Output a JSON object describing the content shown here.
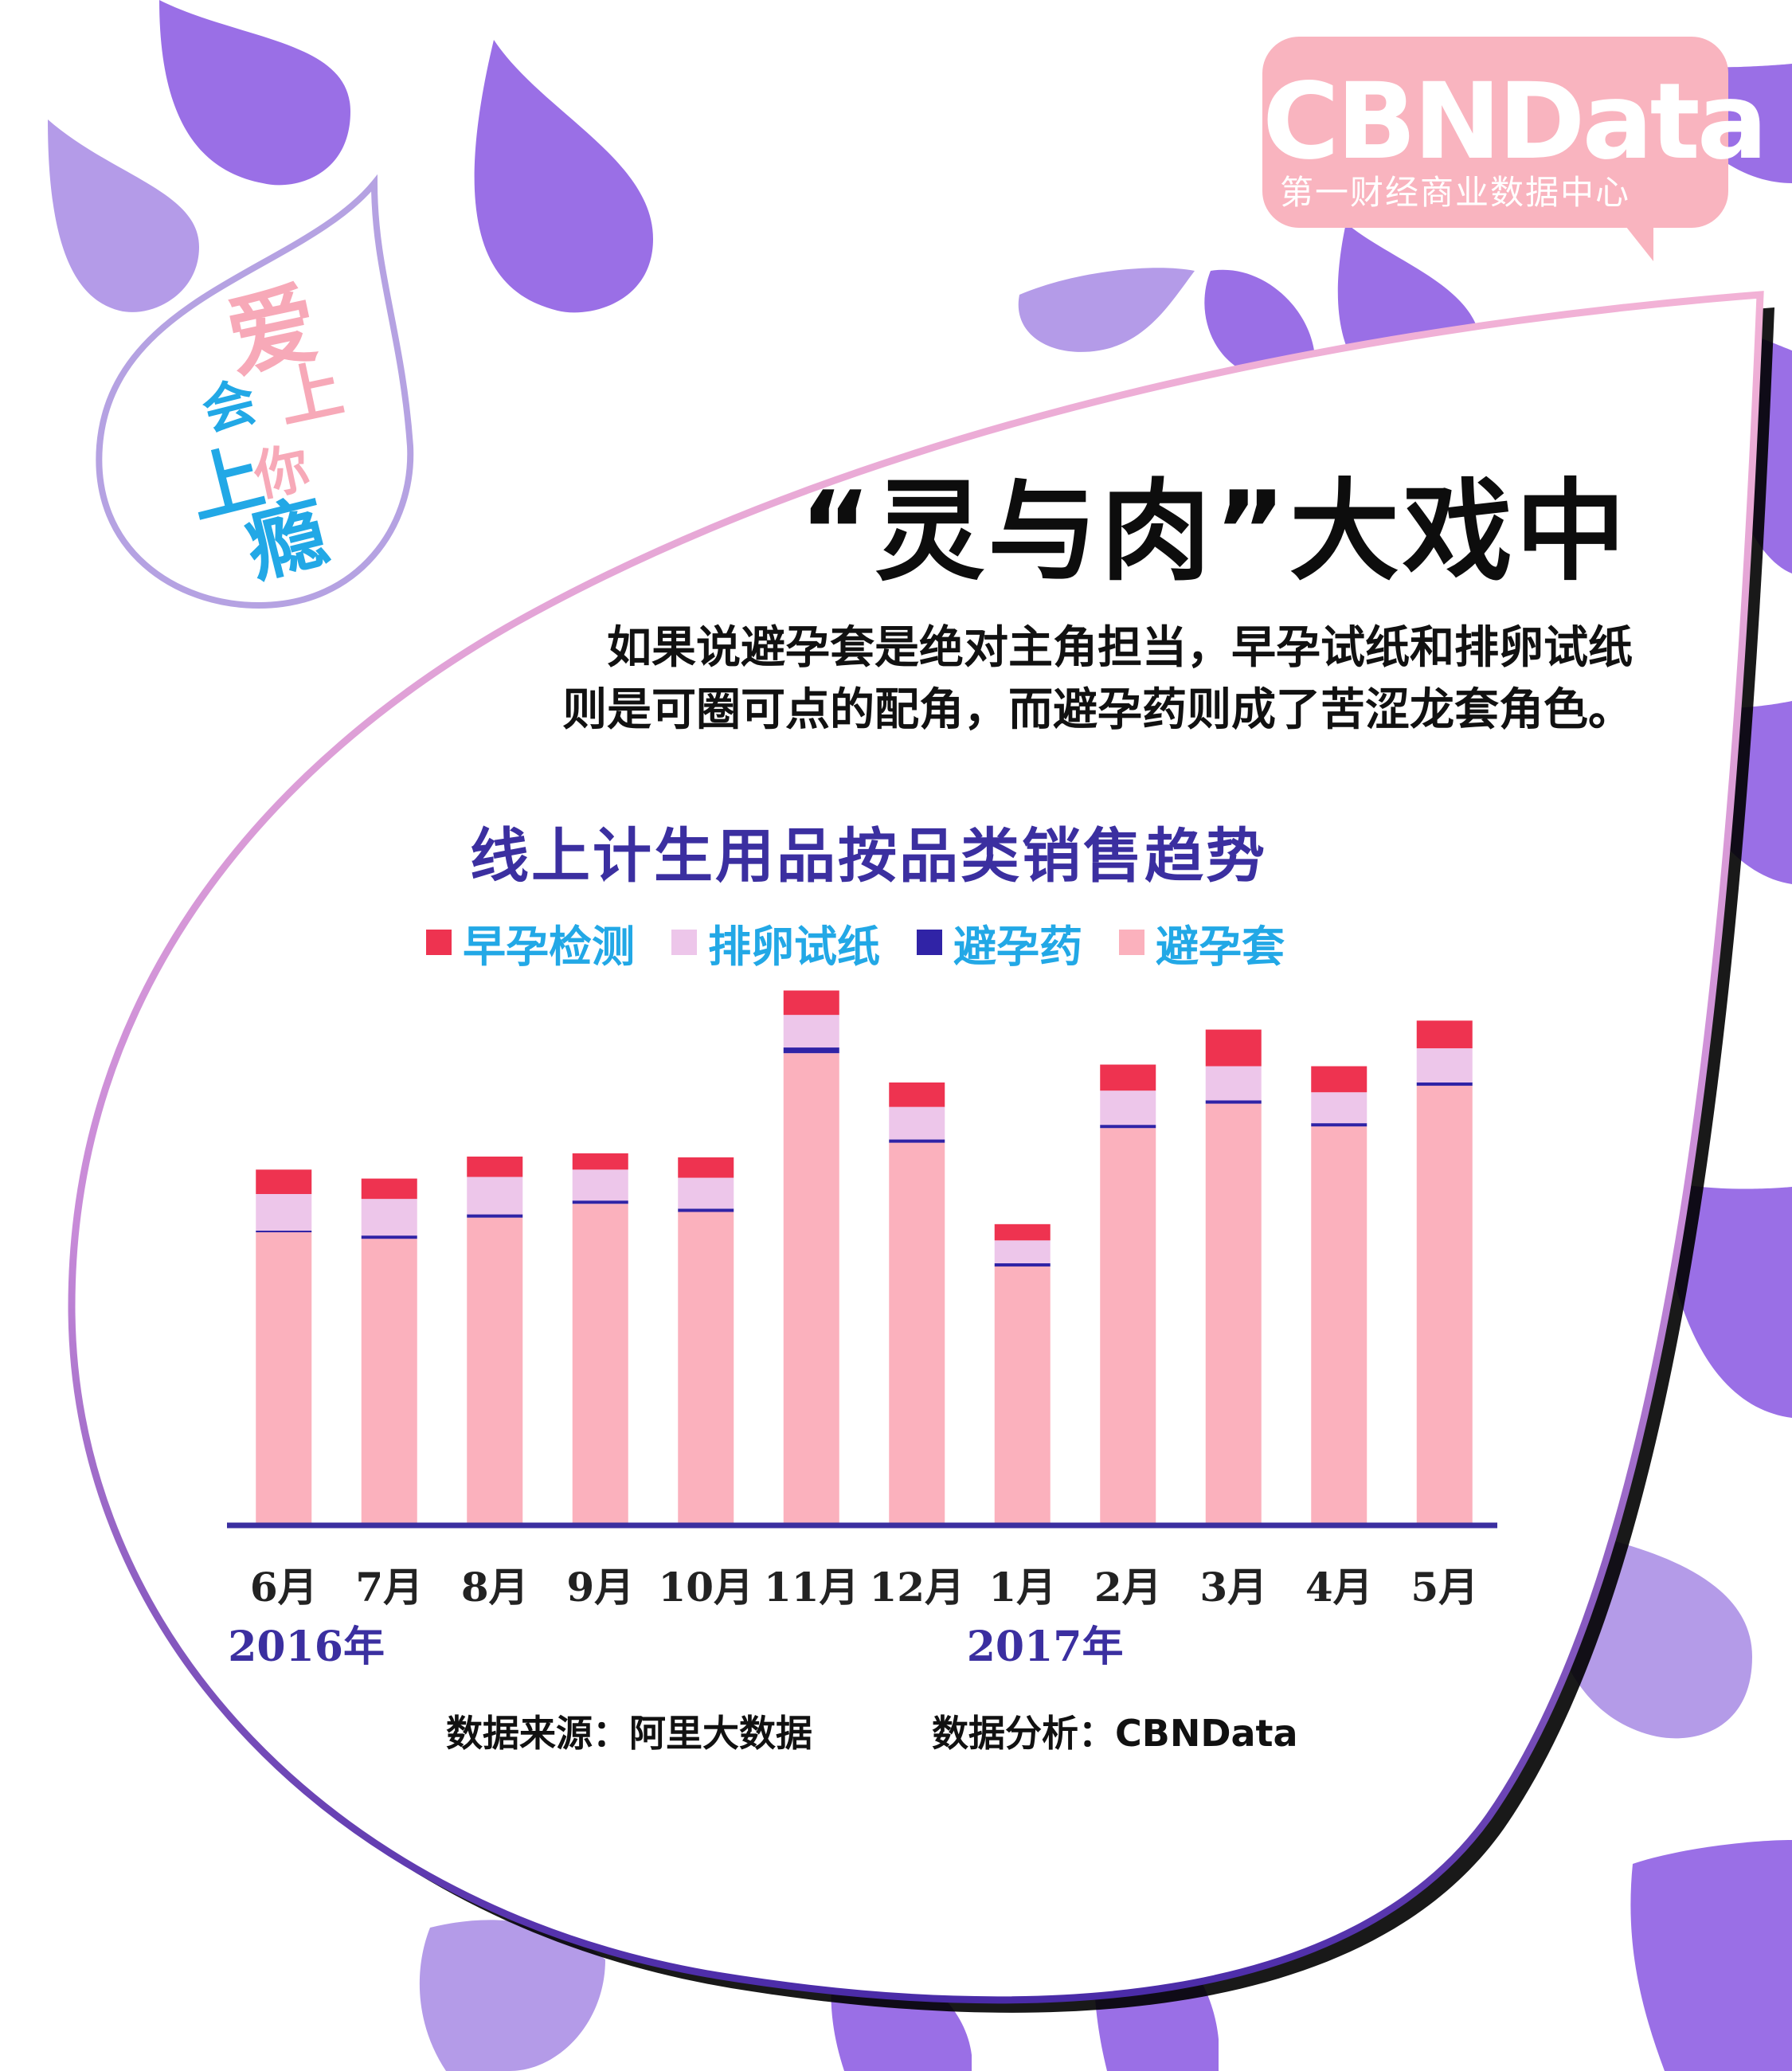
{
  "brand": {
    "logo_text": "CBNData",
    "logo_subtitle": "第一财经商业数据中心"
  },
  "badge": {
    "line1": [
      "爱",
      "上",
      "你"
    ],
    "line2": [
      "会",
      "上",
      "瘾"
    ]
  },
  "headline": "“灵与肉”大戏中",
  "intro": {
    "line1": "如果说避孕套是绝对主角担当，早孕试纸和排卵试纸",
    "line2": "则是可圈可点的配角，而避孕药则成了苦涩龙套角色。"
  },
  "colors": {
    "accent": "#3b2fa0",
    "drop_purple": "#9a6fe6",
    "drop_light": "#b49be8",
    "pink": "#f9b4bf"
  },
  "chart_data": {
    "type": "bar",
    "stacked": true,
    "title": "线上计生用品按品类销售趋势",
    "categories": [
      "6月",
      "7月",
      "8月",
      "9月",
      "10月",
      "11月",
      "12月",
      "1月",
      "2月",
      "3月",
      "4月",
      "5月"
    ],
    "year_labels": [
      {
        "text": "2016年",
        "start_index": 0
      },
      {
        "text": "2017年",
        "start_index": 7
      }
    ],
    "legend_placement": "top",
    "legend_order": [
      "早孕检测",
      "排卵试纸",
      "避孕药",
      "避孕套"
    ],
    "series": [
      {
        "name": "避孕套",
        "color": "#fbb1bd",
        "values": [
          360,
          352,
          378,
          395,
          385,
          580,
          470,
          318,
          488,
          518,
          490,
          540
        ]
      },
      {
        "name": "避孕药",
        "color": "#3023a6",
        "values": [
          2,
          4,
          4,
          4,
          4,
          7,
          4,
          4,
          4,
          4,
          4,
          4
        ]
      },
      {
        "name": "排卵试纸",
        "color": "#edc6ea",
        "values": [
          45,
          45,
          46,
          38,
          38,
          40,
          40,
          28,
          42,
          42,
          38,
          42
        ]
      },
      {
        "name": "早孕检测",
        "color": "#ee3350",
        "values": [
          30,
          25,
          25,
          20,
          25,
          30,
          30,
          20,
          32,
          45,
          32,
          34
        ]
      }
    ],
    "ylim": [
      0,
      680
    ],
    "grid": false,
    "axis_labels_shown": false
  },
  "footer": {
    "source": "数据来源：阿里大数据",
    "analysis": "数据分析：CBNData"
  }
}
